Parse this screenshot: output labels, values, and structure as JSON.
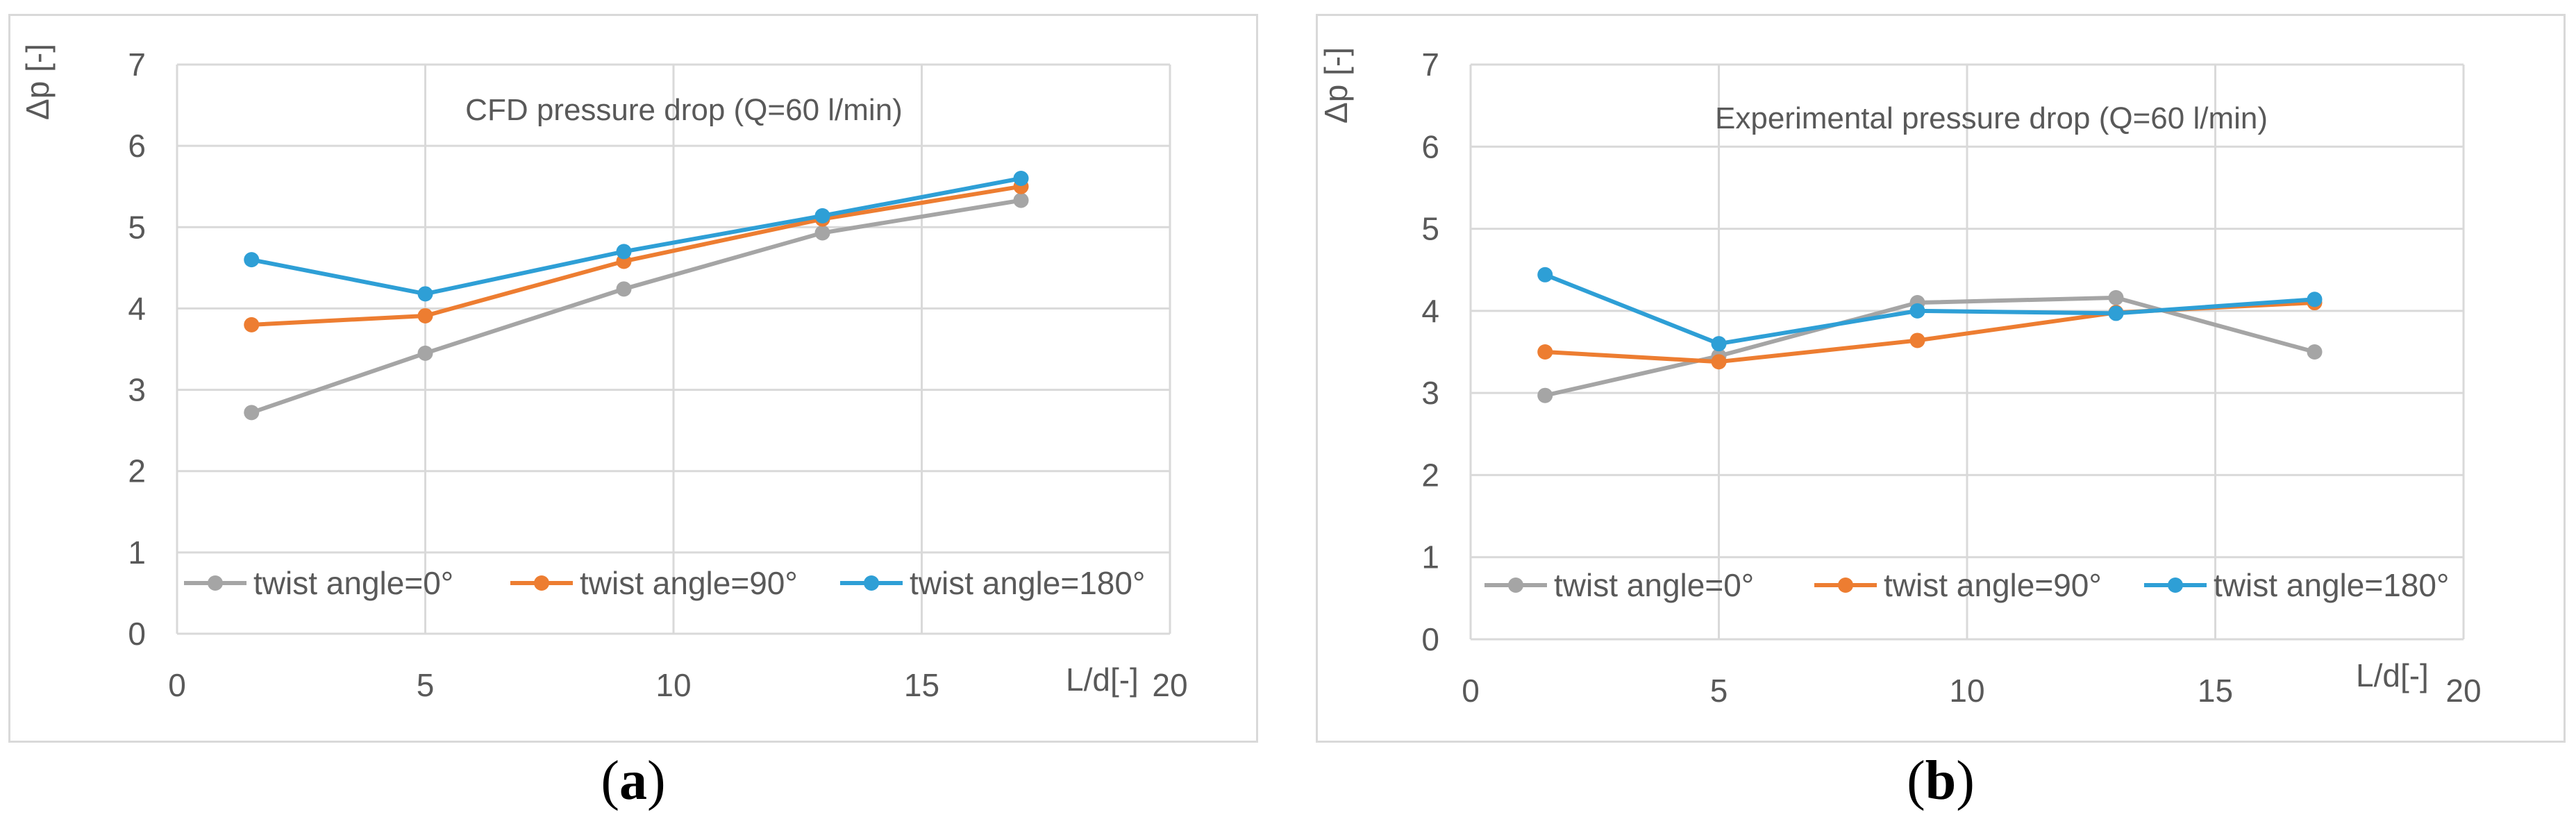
{
  "colors": {
    "twist0": "#a5a5a5",
    "twist90": "#ed7d31",
    "twist180": "#2e9fd6",
    "grid": "#d9d9d9",
    "text": "#595959"
  },
  "captions": {
    "a": {
      "open": "(",
      "letter": "a",
      "close": ")"
    },
    "b": {
      "open": "(",
      "letter": "b",
      "close": ")"
    }
  },
  "chart_data": [
    {
      "type": "line",
      "title": "CFD pressure drop (Q=60 l/min)",
      "xlabel": "L/d[-]",
      "ylabel": "Δp [-]",
      "xlim": [
        0,
        20
      ],
      "ylim": [
        0,
        7
      ],
      "xticks": [
        "0",
        "5",
        "10",
        "15",
        "20"
      ],
      "yticks": [
        "0",
        "1",
        "2",
        "3",
        "4",
        "5",
        "6",
        "7"
      ],
      "grid": true,
      "legend": "bottom-inside",
      "x": [
        1.5,
        5,
        9,
        13,
        17
      ],
      "series": [
        {
          "name": "twist angle=0°",
          "values": [
            2.72,
            3.45,
            4.24,
            4.93,
            5.33
          ]
        },
        {
          "name": "twist angle=90°",
          "values": [
            3.8,
            3.91,
            4.58,
            5.1,
            5.5
          ]
        },
        {
          "name": "twist angle=180°",
          "values": [
            4.6,
            4.18,
            4.7,
            5.14,
            5.6
          ]
        }
      ]
    },
    {
      "type": "line",
      "title": "Experimental pressure drop (Q=60 l/min)",
      "xlabel": "L/d[-]",
      "ylabel": "Δp [-]",
      "xlim": [
        0,
        20
      ],
      "ylim": [
        0,
        7
      ],
      "xticks": [
        "0",
        "5",
        "10",
        "15",
        "20"
      ],
      "yticks": [
        "0",
        "1",
        "2",
        "3",
        "4",
        "5",
        "6",
        "7"
      ],
      "grid": true,
      "legend": "bottom-inside",
      "x": [
        1.5,
        5,
        9,
        13,
        17
      ],
      "series": [
        {
          "name": "twist angle=0°",
          "values": [
            2.97,
            3.45,
            4.1,
            4.16,
            3.5
          ]
        },
        {
          "name": "twist angle=90°",
          "values": [
            3.5,
            3.38,
            3.64,
            3.98,
            4.1
          ]
        },
        {
          "name": "twist angle=180°",
          "values": [
            4.44,
            3.6,
            4.0,
            3.97,
            4.14
          ]
        }
      ]
    }
  ]
}
